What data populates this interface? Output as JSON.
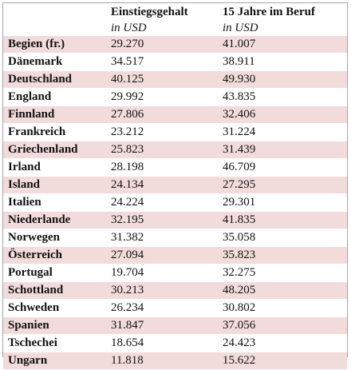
{
  "table": {
    "header": {
      "columns": [
        "Einstiegsgehalt",
        "15 Jahre im Beruf"
      ],
      "units": [
        "in USD",
        "in USD"
      ]
    },
    "rows": [
      [
        "Begien (fr.)",
        "29.270",
        "41.007"
      ],
      [
        "Dänemark",
        "34.517",
        "38.911"
      ],
      [
        "Deutschland",
        "40.125",
        "49.930"
      ],
      [
        "England",
        "29.992",
        "43.835"
      ],
      [
        "Finnland",
        "27.806",
        "32.406"
      ],
      [
        "Frankreich",
        "23.212",
        "31.224"
      ],
      [
        "Griechenland",
        "25.823",
        "31.439"
      ],
      [
        "Irland",
        "28.198",
        "46.709"
      ],
      [
        "Island",
        "24.134",
        "27.295"
      ],
      [
        "Italien",
        "24.224",
        "29.301"
      ],
      [
        "Niederlande",
        "32.195",
        "41.835"
      ],
      [
        "Norwegen",
        "31.382",
        "35.058"
      ],
      [
        "Österreich",
        "27.094",
        "35.823"
      ],
      [
        "Portugal",
        "19.704",
        "32.275"
      ],
      [
        "Schottland",
        "30.213",
        "48.205"
      ],
      [
        "Schweden",
        "26.234",
        "30.802"
      ],
      [
        "Spanien",
        "31.847",
        "37.056"
      ],
      [
        "Tschechei",
        "18.654",
        "24.423"
      ],
      [
        "Ungarn",
        "11.818",
        "15.622"
      ]
    ]
  }
}
